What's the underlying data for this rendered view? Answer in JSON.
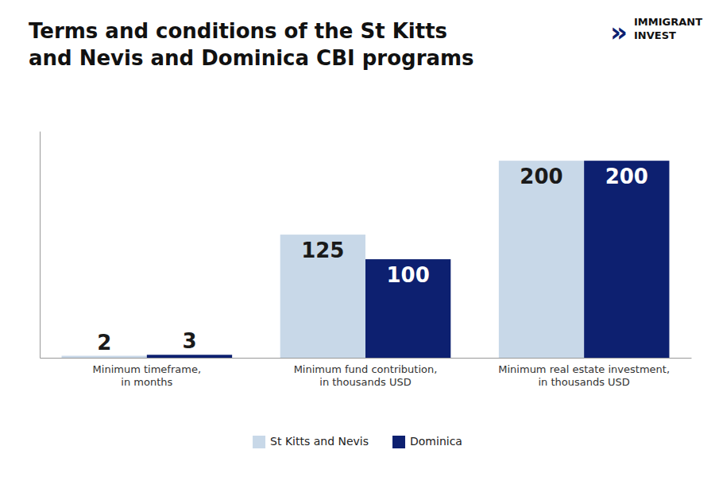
{
  "chart_data": {
    "type": "bar",
    "title": "Terms and conditions of the St Kitts\nand Nevis and Dominica CBI programs",
    "categories": [
      "Minimum timeframe,\nin months",
      "Minimum fund contribution,\nin thousands USD",
      "Minimum real estate investment,\nin thousands USD"
    ],
    "series": [
      {
        "name": "St Kitts and Nevis",
        "color": "#C8D8E8",
        "values": [
          2,
          125,
          200
        ]
      },
      {
        "name": "Dominica",
        "color": "#0D2070",
        "values": [
          3,
          100,
          200
        ]
      }
    ],
    "ylim": [
      0,
      230
    ],
    "grid": false,
    "legend": "bottom",
    "data_labels": true,
    "tick_labels": "x",
    "annotations": [
      {
        "text": "»",
        "color": "#0D2070"
      },
      {
        "text": "IMMIGRANT"
      },
      {
        "text": "INVEST"
      }
    ]
  }
}
